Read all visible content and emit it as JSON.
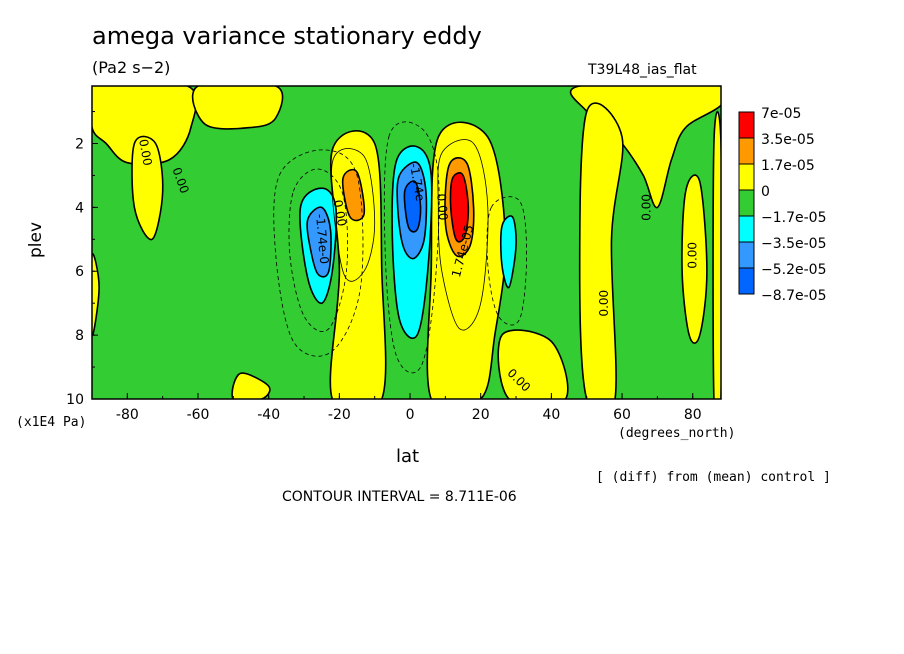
{
  "header": {
    "title": "amega variance stationary eddy",
    "subtitle": "(Pa2 s−2)",
    "run_label": "T39L48_ias_flat"
  },
  "footer": {
    "y_units": "(x1E4 Pa)",
    "x_units": "(degrees_north)",
    "diff_note": "[ (diff) from (mean) control ]",
    "contour_interval": "CONTOUR INTERVAL = 8.711E-06"
  },
  "colors": {
    "red": "#ff0000",
    "orange": "#ff9900",
    "yellow": "#ffff00",
    "green": "#33cc33",
    "cyan": "#00ffff",
    "blue": "#3399ff",
    "darkblue": "#0066ff"
  },
  "chart_data": {
    "type": "heatmap",
    "xlabel": "lat",
    "ylabel": "plev",
    "xlim": [
      -90,
      88
    ],
    "ylim": [
      10,
      0.2
    ],
    "x_ticks": [
      -80,
      -60,
      -40,
      -20,
      0,
      20,
      40,
      60,
      80
    ],
    "y_ticks": [
      2,
      4,
      6,
      8,
      10
    ],
    "legend": {
      "placement": "right",
      "levels": [
        "7e-05",
        "3.5e-05",
        "1.7e-05",
        "0",
        "−1.7e-05",
        "−3.5e-05",
        "−5.2e-05",
        "−8.7e-05"
      ],
      "colors": [
        "#ff0000",
        "#ff9900",
        "#ffff00",
        "#33cc33",
        "#00ffff",
        "#3399ff",
        "#0066ff"
      ]
    },
    "background_value": "-1.7e-05 .. 0",
    "regions": [
      {
        "name": "yellow-top-left",
        "value": "0 .. 1.7e-05",
        "color": "#ffff00",
        "points": [
          [
            -90,
            0.2
          ],
          [
            -63,
            0.2
          ],
          [
            -62,
            1.5
          ],
          [
            -68,
            2.5
          ],
          [
            -80,
            2.6
          ],
          [
            -86,
            2
          ],
          [
            -90,
            1.5
          ]
        ]
      },
      {
        "name": "yellow-top-center",
        "value": "0 .. 1.7e-05",
        "color": "#ffff00",
        "points": [
          [
            -60,
            0.2
          ],
          [
            -38,
            0.2
          ],
          [
            -38,
            1.2
          ],
          [
            -45,
            1.5
          ],
          [
            -58,
            1.4
          ]
        ]
      },
      {
        "name": "yellow-band-left",
        "value": "0 .. 1.7e-05",
        "color": "#ffff00",
        "points": [
          [
            -78,
            2
          ],
          [
            -72,
            2
          ],
          [
            -70,
            3.5
          ],
          [
            -73,
            5
          ],
          [
            -78,
            4
          ]
        ]
      },
      {
        "name": "yellow-left-edge",
        "value": "0 .. 1.7e-05",
        "color": "#ffff00",
        "points": [
          [
            -90,
            5.5
          ],
          [
            -88,
            6.5
          ],
          [
            -90,
            8
          ]
        ]
      },
      {
        "name": "yellow-column-minus20",
        "value": "0 .. 1.7e-05",
        "color": "#ffff00",
        "points": [
          [
            -22,
            2.2
          ],
          [
            -10,
            2
          ],
          [
            -8,
            6
          ],
          [
            -8,
            10
          ],
          [
            -22,
            10
          ],
          [
            -20,
            6
          ]
        ]
      },
      {
        "name": "yellow-column-plus10",
        "value": "0 .. 1.7e-05",
        "color": "#ffff00",
        "points": [
          [
            8,
            1.8
          ],
          [
            22,
            1.8
          ],
          [
            27,
            5
          ],
          [
            24,
            8
          ],
          [
            20,
            10
          ],
          [
            6,
            10
          ],
          [
            6,
            6
          ]
        ]
      },
      {
        "name": "yellow-bottom-30",
        "value": "0 .. 1.7e-05",
        "color": "#ffff00",
        "points": [
          [
            26,
            8
          ],
          [
            40,
            8.2
          ],
          [
            44,
            10
          ],
          [
            28,
            10
          ]
        ]
      },
      {
        "name": "yellow-top-right",
        "value": "0 .. 1.7e-05",
        "color": "#ffff00",
        "points": [
          [
            48,
            0.2
          ],
          [
            88,
            0.2
          ],
          [
            88,
            0.8
          ],
          [
            78,
            1.5
          ],
          [
            74,
            2.5
          ],
          [
            70,
            4
          ],
          [
            66,
            3
          ],
          [
            60,
            2
          ],
          [
            55,
            1.5
          ],
          [
            50,
            1
          ]
        ]
      },
      {
        "name": "yellow-right-column",
        "value": "0 .. 1.7e-05",
        "color": "#ffff00",
        "points": [
          [
            50,
            1
          ],
          [
            60,
            1.8
          ],
          [
            57,
            5
          ],
          [
            58,
            10
          ],
          [
            50,
            10
          ],
          [
            48,
            6
          ]
        ]
      },
      {
        "name": "yellow-right-strip",
        "value": "0 .. 1.7e-05",
        "color": "#ffff00",
        "points": [
          [
            78,
            3.5
          ],
          [
            82,
            3.2
          ],
          [
            84,
            6
          ],
          [
            82,
            8
          ],
          [
            79,
            8
          ],
          [
            77,
            6
          ]
        ]
      },
      {
        "name": "yellow-right-edge",
        "value": "0 .. 1.7e-05",
        "color": "#ffff00",
        "points": [
          [
            86,
            2
          ],
          [
            88,
            2
          ],
          [
            88,
            10
          ],
          [
            86,
            10
          ]
        ]
      },
      {
        "name": "yellow-bottom-left",
        "value": "0 .. 1.7e-05",
        "color": "#ffff00",
        "points": [
          [
            -48,
            9.2
          ],
          [
            -40,
            9.6
          ],
          [
            -42,
            10
          ],
          [
            -50,
            10
          ]
        ]
      },
      {
        "name": "orange-minus17",
        "value": "1.7e-05 .. 3.5e-05",
        "color": "#ff9900",
        "points": [
          [
            -19,
            3.1
          ],
          [
            -15,
            2.9
          ],
          [
            -13,
            4.2
          ],
          [
            -17,
            4.3
          ]
        ]
      },
      {
        "name": "orange-plus13",
        "value": "1.7e-05 .. 3.5e-05",
        "color": "#ff9900",
        "points": [
          [
            11,
            2.7
          ],
          [
            16,
            2.6
          ],
          [
            18,
            4
          ],
          [
            17,
            5.2
          ],
          [
            13,
            5.5
          ],
          [
            10,
            4.5
          ]
        ]
      },
      {
        "name": "red-plus14",
        "value": "3.5e-05 .. 7e-05",
        "color": "#ff0000",
        "points": [
          [
            12,
            3.1
          ],
          [
            15,
            3
          ],
          [
            16.5,
            4
          ],
          [
            15.5,
            4.9
          ],
          [
            13,
            5
          ],
          [
            11.5,
            4
          ]
        ]
      },
      {
        "name": "cyan-minus25",
        "value": "-3.5e-05 .. -1.7e-05",
        "color": "#00ffff",
        "points": [
          [
            -31,
            4
          ],
          [
            -25,
            3.4
          ],
          [
            -21,
            4
          ],
          [
            -22,
            6
          ],
          [
            -25,
            7
          ],
          [
            -29,
            6.2
          ]
        ]
      },
      {
        "name": "cyan-0",
        "value": "-3.5e-05 .. -1.7e-05",
        "color": "#00ffff",
        "points": [
          [
            -4,
            2.6
          ],
          [
            2,
            2.1
          ],
          [
            6,
            3
          ],
          [
            5,
            6
          ],
          [
            2,
            8
          ],
          [
            -3,
            7.5
          ],
          [
            -5,
            5
          ]
        ]
      },
      {
        "name": "cyan-plus28",
        "value": "-3.5e-05 .. -1.7e-05",
        "color": "#00ffff",
        "points": [
          [
            26,
            4.6
          ],
          [
            29,
            4.3
          ],
          [
            30,
            5.2
          ],
          [
            28,
            6.5
          ],
          [
            26,
            5.8
          ]
        ]
      },
      {
        "name": "blue-minus25",
        "value": "-5.2e-05 .. -3.5e-05",
        "color": "#3399ff",
        "points": [
          [
            -29,
            4.4
          ],
          [
            -25,
            4
          ],
          [
            -22.5,
            4.7
          ],
          [
            -23,
            6
          ],
          [
            -26,
            6.1
          ],
          [
            -28,
            5.4
          ]
        ]
      },
      {
        "name": "blue-0",
        "value": "-5.2e-05 .. -3.5e-05",
        "color": "#3399ff",
        "points": [
          [
            -3,
            3
          ],
          [
            2,
            2.6
          ],
          [
            4.5,
            3.5
          ],
          [
            4,
            5
          ],
          [
            1,
            5.6
          ],
          [
            -2,
            5.2
          ],
          [
            -3.5,
            4
          ]
        ]
      },
      {
        "name": "darkblue-0",
        "value": "-8.7e-05 .. -5.2e-05",
        "color": "#0066ff",
        "points": [
          [
            -1.5,
            3.5
          ],
          [
            1.5,
            3.2
          ],
          [
            3,
            4
          ],
          [
            2,
            4.7
          ],
          [
            -0.5,
            4.6
          ]
        ]
      }
    ],
    "contour_labels": [
      {
        "text": "0.00",
        "x": -76,
        "y": 2.3,
        "rotate": 80
      },
      {
        "text": "0.00",
        "x": -66,
        "y": 3.2,
        "rotate": 70
      },
      {
        "text": "0.00",
        "x": -21,
        "y": 4.2,
        "rotate": 80
      },
      {
        "text": "-1.74e-0",
        "x": -26,
        "y": 5,
        "rotate": 85
      },
      {
        "text": "-1.74e-",
        "x": 1,
        "y": 3.3,
        "rotate": 80
      },
      {
        "text": "0.00",
        "x": 8,
        "y": 4,
        "rotate": 85
      },
      {
        "text": "1.74e-05",
        "x": 16,
        "y": 5.4,
        "rotate": -75
      },
      {
        "text": "0.00",
        "x": 30,
        "y": 9.5,
        "rotate": 45
      },
      {
        "text": "0.00",
        "x": 56,
        "y": 7,
        "rotate": -90
      },
      {
        "text": "0.00",
        "x": 68,
        "y": 4,
        "rotate": -90
      },
      {
        "text": "0.00",
        "x": 81,
        "y": 5.5,
        "rotate": -90
      }
    ],
    "dashed_contours": [
      [
        [
          -33,
          3.5
        ],
        [
          -26,
          2.8
        ],
        [
          -19,
          3.6
        ],
        [
          -18,
          6
        ],
        [
          -23,
          7.8
        ],
        [
          -30,
          7.4
        ],
        [
          -34,
          5.5
        ]
      ],
      [
        [
          -6,
          1.8
        ],
        [
          3,
          1.5
        ],
        [
          8,
          3
        ],
        [
          7,
          6.5
        ],
        [
          3,
          9
        ],
        [
          -4,
          8.6
        ],
        [
          -7,
          5.5
        ]
      ],
      [
        [
          23,
          4
        ],
        [
          31,
          3.8
        ],
        [
          33,
          5.5
        ],
        [
          31,
          7.5
        ],
        [
          25,
          7.4
        ],
        [
          22,
          5.8
        ]
      ],
      [
        [
          -37,
          3
        ],
        [
          -25,
          2.2
        ],
        [
          -15,
          3
        ],
        [
          -14,
          6.5
        ],
        [
          -22,
          8.5
        ],
        [
          -33,
          8.2
        ],
        [
          -38,
          5.5
        ]
      ]
    ],
    "solid_contours": [
      [
        [
          9,
          2.3
        ],
        [
          18,
          2
        ],
        [
          22,
          4
        ],
        [
          20,
          7
        ],
        [
          14,
          7.8
        ],
        [
          9,
          6
        ],
        [
          8,
          4
        ]
      ],
      [
        [
          -22,
          2.6
        ],
        [
          -13,
          2.4
        ],
        [
          -10,
          4.5
        ],
        [
          -13,
          6
        ],
        [
          -19,
          6
        ]
      ]
    ]
  }
}
